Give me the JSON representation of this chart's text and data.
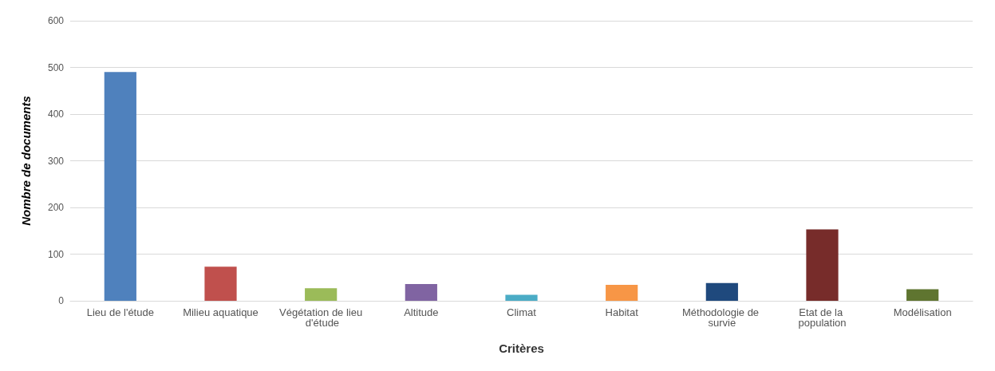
{
  "chart_data": {
    "type": "bar",
    "xlabel": "Critères",
    "ylabel": "Nombre de documents",
    "categories": [
      "Lieu de l'étude",
      "Milieu aquatique",
      "Végétation de lieu d'étude",
      "Altitude",
      "Climat",
      "Habitat",
      "Méthodologie de survie",
      "Etat de la population",
      "Modélisation"
    ],
    "values": [
      490,
      73,
      27,
      36,
      13,
      34,
      38,
      153,
      25
    ],
    "colors": [
      "#4f81bd",
      "#c0504d",
      "#9bbb59",
      "#8064a2",
      "#4bacc6",
      "#f79646",
      "#1f497d",
      "#772c2a",
      "#5f7530"
    ],
    "ylim": [
      0,
      600
    ],
    "yticks": [
      0,
      100,
      200,
      300,
      400,
      500,
      600
    ],
    "grid": "y"
  }
}
